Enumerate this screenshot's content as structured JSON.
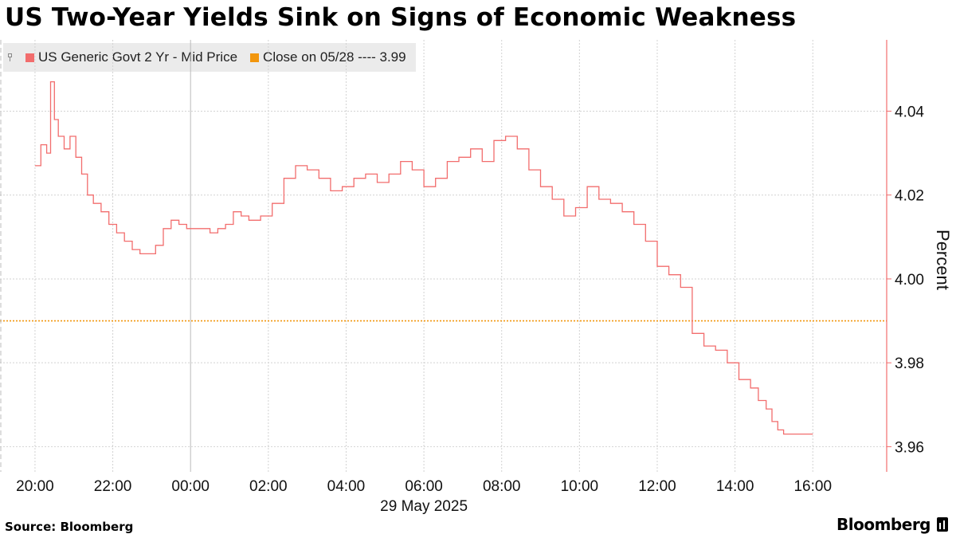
{
  "title": "US Two-Year Yields Sink on Signs of Economic Weakness",
  "source": "Source: Bloomberg",
  "brand": "Bloomberg",
  "legend": [
    {
      "label": "US Generic Govt 2 Yr - Mid Price",
      "color": "#f26d6d"
    },
    {
      "label": "Close on 05/28 ---- 3.99",
      "color": "#f2960d"
    }
  ],
  "chart_data": {
    "type": "line",
    "title": "US Two-Year Yields Sink on Signs of Economic Weakness",
    "xlabel": "29 May 2025",
    "ylabel": "Percent",
    "x_ticks": [
      "20:00",
      "22:00",
      "00:00",
      "02:00",
      "04:00",
      "06:00",
      "08:00",
      "10:00",
      "12:00",
      "14:00",
      "16:00"
    ],
    "y_ticks": [
      "4.04",
      "4.02",
      "4.00",
      "3.98",
      "3.96"
    ],
    "xlim_hours": [
      -0.9,
      21.9
    ],
    "ylim": [
      3.954,
      4.057
    ],
    "grid": true,
    "legend_position": "top-left",
    "series": [
      {
        "name": "US Generic Govt 2 Yr - Mid Price",
        "color": "#f26d6d",
        "x_hours": [
          0,
          0.15,
          0.3,
          0.4,
          0.5,
          0.6,
          0.75,
          0.9,
          1.05,
          1.2,
          1.35,
          1.5,
          1.7,
          1.9,
          2.1,
          2.3,
          2.5,
          2.7,
          2.9,
          3.1,
          3.3,
          3.5,
          3.7,
          3.9,
          4.1,
          4.3,
          4.5,
          4.7,
          4.9,
          5.1,
          5.3,
          5.5,
          5.8,
          6.1,
          6.4,
          6.7,
          7.0,
          7.3,
          7.6,
          7.9,
          8.2,
          8.5,
          8.8,
          9.1,
          9.4,
          9.7,
          10.0,
          10.3,
          10.6,
          10.9,
          11.2,
          11.5,
          11.8,
          12.1,
          12.4,
          12.7,
          13.0,
          13.3,
          13.6,
          13.9,
          14.2,
          14.5,
          14.8,
          15.1,
          15.4,
          15.7,
          16.0,
          16.3,
          16.6,
          16.9,
          17.2,
          17.5,
          17.8,
          18.1,
          18.4,
          18.6,
          18.8,
          18.95,
          19.1,
          19.25,
          19.4,
          19.55,
          19.7,
          19.85,
          20.0
        ],
        "values": [
          4.027,
          4.032,
          4.03,
          4.047,
          4.038,
          4.034,
          4.031,
          4.034,
          4.029,
          4.025,
          4.02,
          4.018,
          4.016,
          4.013,
          4.011,
          4.009,
          4.007,
          4.006,
          4.006,
          4.008,
          4.012,
          4.014,
          4.013,
          4.012,
          4.012,
          4.012,
          4.011,
          4.012,
          4.013,
          4.016,
          4.015,
          4.014,
          4.015,
          4.018,
          4.024,
          4.027,
          4.026,
          4.024,
          4.021,
          4.022,
          4.024,
          4.025,
          4.023,
          4.025,
          4.028,
          4.026,
          4.022,
          4.024,
          4.028,
          4.029,
          4.031,
          4.028,
          4.033,
          4.034,
          4.031,
          4.026,
          4.022,
          4.019,
          4.015,
          4.017,
          4.022,
          4.019,
          4.018,
          4.016,
          4.013,
          4.009,
          4.003,
          4.001,
          3.998,
          3.987,
          3.984,
          3.983,
          3.98,
          3.976,
          3.974,
          3.971,
          3.969,
          3.966,
          3.964,
          3.963,
          3.963,
          3.963,
          3.963,
          3.963,
          3.963
        ]
      },
      {
        "name": "Close on 05/28 ---- 3.99",
        "color": "#f2960d",
        "style": "dotted",
        "y": 3.99
      }
    ]
  }
}
